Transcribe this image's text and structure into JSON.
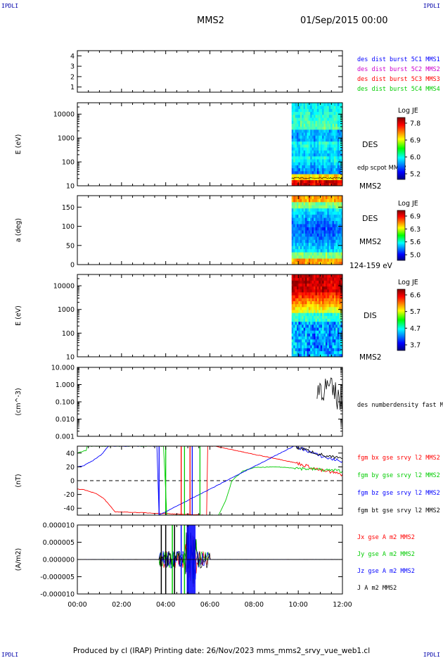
{
  "header": {
    "left_corner": "IPDLI",
    "right_corner": "IPDLI",
    "probe": "MMS2",
    "datetime": "01/Sep/2015 00:00"
  },
  "footer": {
    "text": "Produced by cl (IRAP)   Printing date: 26/Nov/2023   mms_mms2_srvy_vue_web1.cl",
    "left_corner": "IPDLI",
    "right_corner": "IPDLI"
  },
  "colors": {
    "spacecraft": [
      "#0000ff",
      "#cc00cc",
      "#ff0000",
      "#00cc00"
    ],
    "bfield": {
      "bx": "#ff0000",
      "by": "#00cc00",
      "bz": "#0000ff",
      "bt": "#000000"
    }
  },
  "chart_data": [
    {
      "type": "table",
      "id": "burst",
      "ylim": [
        0.5,
        4.5
      ],
      "yticks": [
        "4",
        "3",
        "2",
        "1"
      ],
      "legend": [
        "des dist burst 5C1 MMS1",
        "des dist burst 5C2 MMS2",
        "des dist burst 5C3 MMS3",
        "des dist burst 5C4 MMS4"
      ]
    },
    {
      "type": "heatmap",
      "id": "des_energy",
      "ylabel": "E (eV)",
      "yscale": "log",
      "ylim": [
        10,
        30000
      ],
      "yticks": [
        "10000",
        "1000",
        "100",
        "10"
      ],
      "data_start_hour": 9.7,
      "right_labels": [
        "DES",
        "edp scpot MMS2",
        "MMS2"
      ],
      "colorbar": {
        "title": "Log JE",
        "ticks": [
          "7.8",
          "6.9",
          "6.0",
          "5.2"
        ],
        "range": [
          5.2,
          7.8
        ]
      }
    },
    {
      "type": "heatmap",
      "id": "des_pitch",
      "ylabel": "a (deg)",
      "ylim": [
        0,
        180
      ],
      "yticks": [
        "150",
        "100",
        "50",
        "0"
      ],
      "data_start_hour": 9.7,
      "right_labels": [
        "DES",
        "MMS2",
        "124-159 eV"
      ],
      "colorbar": {
        "title": "Log JE",
        "ticks": [
          "6.9",
          "6.3",
          "5.6",
          "5.0"
        ],
        "range": [
          5.0,
          6.9
        ]
      }
    },
    {
      "type": "heatmap",
      "id": "dis_energy",
      "ylabel": "E (eV)",
      "yscale": "log",
      "ylim": [
        10,
        30000
      ],
      "yticks": [
        "10000",
        "1000",
        "100",
        "10"
      ],
      "data_start_hour": 9.7,
      "right_labels": [
        "DIS",
        "MMS2"
      ],
      "colorbar": {
        "title": "Log JE",
        "ticks": [
          "6.6",
          "5.7",
          "4.7",
          "3.7"
        ],
        "range": [
          3.7,
          6.6
        ]
      }
    },
    {
      "type": "line",
      "id": "density",
      "ylabel": "(cm^-3)",
      "yscale": "log",
      "ylim": [
        0.001,
        10
      ],
      "yticks": [
        "10.000",
        "1.000",
        "0.100",
        "0.010",
        "0.001"
      ],
      "legend": [
        "des numberdensity fast M"
      ]
    },
    {
      "type": "line",
      "id": "bfield",
      "ylabel": "(nT)",
      "ylim": [
        -50,
        50
      ],
      "yticks": [
        "40",
        "20",
        "0",
        "-20",
        "-40"
      ],
      "legend": [
        "fgm bx gse srvy l2 MMS2",
        "fgm by gse srvy l2 MMS2",
        "fgm bz gse srvy l2 MMS2",
        "fgm bt gse srvy l2 MMS2"
      ],
      "series": [
        {
          "name": "fgm bx gse srvy l2 MMS2",
          "x": [
            0,
            0.3,
            0.8,
            1.2,
            1.7,
            5.85,
            5.9,
            6.2,
            7,
            8,
            9,
            10,
            10.5,
            11,
            11.5,
            12
          ],
          "y": [
            -12,
            -13,
            -18,
            -26,
            -45,
            -50,
            50,
            50,
            45,
            38,
            32,
            25,
            20,
            15,
            12,
            9
          ]
        },
        {
          "name": "fgm by gse srvy l2 MMS2",
          "x": [
            0,
            0.4,
            0.45,
            3.9,
            4.05,
            6.4,
            6.7,
            7.0,
            7.5,
            8,
            9,
            10,
            11,
            12
          ],
          "y": [
            40,
            44,
            50,
            50,
            -50,
            -50,
            -30,
            0,
            14,
            19,
            20,
            18,
            16,
            14
          ]
        },
        {
          "name": "fgm bz gse srvy l2 MMS2",
          "x": [
            0,
            0.3,
            0.7,
            1.1,
            1.4,
            3.6,
            3.7,
            9.8,
            10.3,
            10.8,
            11.3,
            12
          ],
          "y": [
            20,
            22,
            29,
            38,
            50,
            50,
            -50,
            50,
            45,
            38,
            33,
            28
          ]
        },
        {
          "name": "fgm bt gse srvy l2 MMS2",
          "x": [
            9.8,
            10.3,
            10.8,
            11.3,
            12
          ],
          "y": [
            50,
            45,
            40,
            35,
            32
          ]
        }
      ]
    },
    {
      "type": "line",
      "id": "current",
      "ylabel": "(A/m2)",
      "ylim": [
        -1e-05,
        1e-05
      ],
      "yticks": [
        "0.000010",
        "0.000005",
        "0.000000",
        "-0.000005",
        "-0.000010"
      ],
      "legend": [
        "Jx gse A m2 MMS2",
        "Jy gse A m2 MMS2",
        "Jz gse A m2 MMS2",
        "J A m2 MMS2"
      ]
    }
  ],
  "time_axis": {
    "xlim": [
      0,
      12
    ],
    "ticks": [
      "00:00",
      "02:00",
      "04:00",
      "06:00",
      "08:00",
      "10:00",
      "12:00"
    ]
  }
}
